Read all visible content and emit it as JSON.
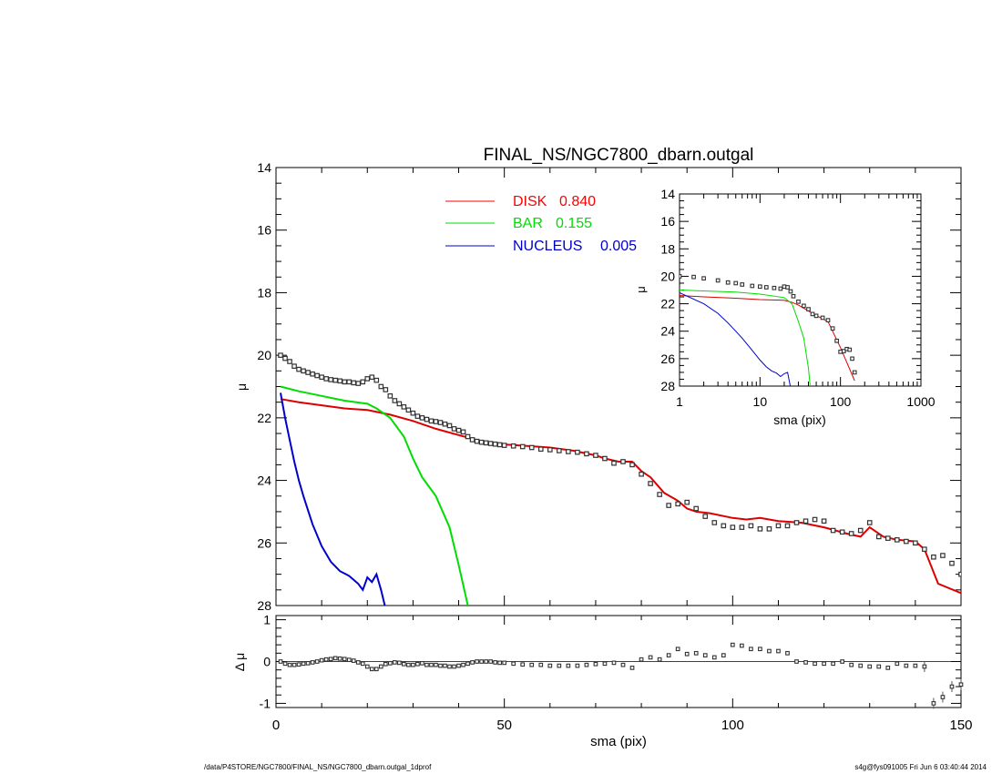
{
  "chart_data": {
    "type": "line",
    "title": "FINAL_NS/NGC7800_dbarn.outgal",
    "main": {
      "xlabel": "sma (pix)",
      "ylabel": "μ",
      "xlim": [
        0,
        150
      ],
      "ylim": [
        14,
        28
      ],
      "y_inverted": true,
      "xticks": [
        "0",
        "50",
        "100",
        "150"
      ],
      "yticks": [
        "14",
        "16",
        "18",
        "20",
        "22",
        "24",
        "26",
        "28"
      ],
      "legend": [
        {
          "name": "DISK",
          "value": "0.840",
          "color": "#ff0000"
        },
        {
          "name": "BAR",
          "value": "0.155",
          "color": "#00dd00"
        },
        {
          "name": "NUCLEUS",
          "value": "0.005",
          "color": "#0000cc"
        }
      ],
      "series": [
        {
          "key": "disk",
          "color": "#dd0000",
          "x": [
            1,
            5,
            10,
            15,
            20,
            25,
            30,
            35,
            40,
            45,
            50,
            55,
            60,
            65,
            70,
            72,
            75,
            78,
            80,
            82,
            85,
            88,
            90,
            92,
            95,
            100,
            103,
            106,
            110,
            115,
            120,
            125,
            128,
            130,
            133,
            136,
            140,
            142,
            145,
            150
          ],
          "y": [
            21.4,
            21.5,
            21.6,
            21.7,
            21.75,
            21.9,
            22.1,
            22.35,
            22.55,
            22.75,
            22.85,
            22.9,
            22.95,
            23.05,
            23.2,
            23.3,
            23.4,
            23.4,
            23.7,
            23.9,
            24.4,
            24.65,
            24.9,
            25.0,
            25.05,
            25.2,
            25.25,
            25.2,
            25.3,
            25.35,
            25.5,
            25.7,
            25.8,
            25.5,
            25.8,
            25.9,
            25.95,
            26.2,
            27.3,
            27.6
          ]
        },
        {
          "key": "bar",
          "color": "#00dd00",
          "x": [
            1,
            5,
            10,
            15,
            20,
            22,
            25,
            28,
            30,
            32,
            35,
            38,
            40,
            42
          ],
          "y": [
            21.0,
            21.15,
            21.3,
            21.45,
            21.55,
            21.7,
            22.0,
            22.6,
            23.3,
            23.9,
            24.5,
            25.5,
            26.7,
            28.0
          ]
        },
        {
          "key": "nucleus",
          "color": "#0000cc",
          "x": [
            1,
            2,
            3,
            4,
            5,
            6,
            8,
            10,
            12,
            14,
            16,
            18,
            19,
            20,
            21,
            22,
            23,
            24
          ],
          "y": [
            21.2,
            22.0,
            22.7,
            23.4,
            24.0,
            24.5,
            25.4,
            26.1,
            26.6,
            26.9,
            27.05,
            27.3,
            27.5,
            27.1,
            27.25,
            27.0,
            27.5,
            28.1
          ]
        },
        {
          "key": "data",
          "type": "points",
          "marker": "square",
          "x": [
            1,
            2,
            3,
            4,
            5,
            6,
            7,
            8,
            9,
            10,
            11,
            12,
            13,
            14,
            15,
            16,
            17,
            18,
            19,
            20,
            21,
            22,
            23,
            24,
            25,
            26,
            27,
            28,
            29,
            30,
            31,
            32,
            33,
            34,
            35,
            36,
            37,
            38,
            39,
            40,
            41,
            42,
            43,
            44,
            45,
            46,
            47,
            48,
            49,
            50,
            52,
            54,
            56,
            58,
            60,
            62,
            64,
            66,
            68,
            70,
            72,
            74,
            76,
            78,
            80,
            82,
            84,
            86,
            88,
            90,
            92,
            94,
            96,
            98,
            100,
            102,
            104,
            106,
            108,
            110,
            112,
            114,
            116,
            118,
            120,
            122,
            124,
            126,
            128,
            130,
            132,
            134,
            136,
            138,
            140,
            142,
            144,
            146,
            148,
            150
          ],
          "y": [
            20.0,
            20.1,
            20.2,
            20.35,
            20.45,
            20.5,
            20.55,
            20.6,
            20.65,
            20.7,
            20.75,
            20.78,
            20.8,
            20.82,
            20.85,
            20.85,
            20.88,
            20.9,
            20.85,
            20.75,
            20.7,
            20.8,
            21.0,
            21.1,
            21.3,
            21.45,
            21.55,
            21.65,
            21.75,
            21.85,
            21.95,
            22.0,
            22.05,
            22.1,
            22.12,
            22.15,
            22.2,
            22.25,
            22.35,
            22.4,
            22.45,
            22.6,
            22.7,
            22.75,
            22.78,
            22.8,
            22.82,
            22.84,
            22.86,
            22.88,
            22.9,
            22.92,
            22.95,
            23.0,
            23.02,
            23.05,
            23.08,
            23.1,
            23.15,
            23.2,
            23.3,
            23.45,
            23.4,
            23.5,
            23.8,
            24.1,
            24.45,
            24.8,
            24.75,
            24.7,
            24.9,
            25.15,
            25.35,
            25.45,
            25.5,
            25.5,
            25.45,
            25.55,
            25.55,
            25.45,
            25.45,
            25.35,
            25.3,
            25.25,
            25.3,
            25.6,
            25.65,
            25.7,
            25.6,
            25.35,
            25.8,
            25.85,
            25.9,
            25.95,
            26.0,
            26.2,
            26.45,
            26.4,
            26.65,
            27.0
          ]
        }
      ]
    },
    "residual": {
      "xlabel": "sma (pix)",
      "ylabel": "Δ μ",
      "xlim": [
        0,
        150
      ],
      "ylim": [
        -1.1,
        1.1
      ],
      "yticks": [
        "1",
        "0",
        "-1"
      ],
      "x": [
        1,
        2,
        3,
        4,
        5,
        6,
        7,
        8,
        9,
        10,
        11,
        12,
        13,
        14,
        15,
        16,
        17,
        18,
        19,
        20,
        21,
        22,
        23,
        24,
        25,
        26,
        27,
        28,
        29,
        30,
        31,
        32,
        33,
        34,
        35,
        36,
        37,
        38,
        39,
        40,
        41,
        42,
        43,
        44,
        45,
        46,
        47,
        48,
        49,
        50,
        52,
        54,
        56,
        58,
        60,
        62,
        64,
        66,
        68,
        70,
        72,
        74,
        76,
        78,
        80,
        82,
        84,
        86,
        88,
        90,
        92,
        94,
        96,
        98,
        100,
        102,
        104,
        106,
        108,
        110,
        112,
        114,
        116,
        118,
        120,
        122,
        124,
        126,
        128,
        130,
        132,
        134,
        136,
        138,
        140,
        142,
        144,
        146,
        148,
        150
      ],
      "y": [
        0.0,
        -0.05,
        -0.08,
        -0.08,
        -0.07,
        -0.05,
        -0.04,
        -0.02,
        0.0,
        0.03,
        0.05,
        0.06,
        0.08,
        0.07,
        0.06,
        0.04,
        0.02,
        -0.02,
        -0.05,
        -0.12,
        -0.18,
        -0.18,
        -0.12,
        -0.06,
        -0.04,
        -0.02,
        -0.03,
        -0.06,
        -0.08,
        -0.08,
        -0.06,
        -0.04,
        -0.08,
        -0.08,
        -0.08,
        -0.1,
        -0.1,
        -0.12,
        -0.12,
        -0.1,
        -0.08,
        -0.05,
        -0.02,
        0.0,
        0.0,
        0.0,
        0.0,
        -0.02,
        -0.03,
        -0.03,
        -0.05,
        -0.07,
        -0.08,
        -0.08,
        -0.1,
        -0.1,
        -0.1,
        -0.1,
        -0.08,
        -0.06,
        -0.05,
        -0.03,
        -0.08,
        -0.15,
        0.05,
        0.1,
        0.05,
        0.15,
        0.3,
        0.18,
        0.2,
        0.15,
        0.1,
        0.15,
        0.4,
        0.38,
        0.3,
        0.3,
        0.25,
        0.25,
        0.2,
        0.0,
        -0.02,
        -0.05,
        -0.05,
        -0.05,
        0.0,
        -0.08,
        -0.1,
        -0.12,
        -0.12,
        -0.15,
        -0.05,
        -0.1,
        -0.1,
        -0.12,
        -1.0,
        -0.85,
        -0.6,
        -0.55
      ]
    },
    "inset": {
      "xlabel": "sma (pix)",
      "ylabel": "μ",
      "x_scale": "log",
      "xlim": [
        1,
        1000
      ],
      "ylim": [
        14,
        28
      ],
      "y_inverted": true,
      "xticks": [
        "1",
        "10",
        "100",
        "1000"
      ],
      "yticks": [
        "14",
        "16",
        "18",
        "20",
        "22",
        "24",
        "26",
        "28"
      ],
      "series": [
        {
          "key": "disk",
          "color": "#dd0000",
          "x": [
            1,
            2,
            5,
            10,
            20,
            25,
            30,
            50,
            70,
            100,
            150
          ],
          "y": [
            21.4,
            21.5,
            21.6,
            21.7,
            21.75,
            21.9,
            22.1,
            22.85,
            23.3,
            25.2,
            27.6
          ]
        },
        {
          "key": "bar",
          "color": "#00dd00",
          "x": [
            1,
            5,
            10,
            20,
            25,
            30,
            35,
            40,
            42
          ],
          "y": [
            21.0,
            21.15,
            21.3,
            21.55,
            22.0,
            23.3,
            24.5,
            26.7,
            28.0
          ]
        },
        {
          "key": "nucleus",
          "color": "#0000cc",
          "x": [
            1,
            2,
            3,
            4,
            5,
            6,
            8,
            10,
            12,
            14,
            16,
            18,
            20,
            22,
            24
          ],
          "y": [
            21.2,
            22.0,
            22.7,
            23.4,
            24.0,
            24.5,
            25.4,
            26.1,
            26.6,
            26.9,
            27.05,
            27.3,
            27.1,
            27.0,
            28.1
          ]
        },
        {
          "key": "data",
          "type": "points",
          "marker": "square",
          "x": [
            1,
            1.5,
            2,
            3,
            4,
            5,
            6,
            8,
            10,
            12,
            15,
            18,
            20,
            22,
            24,
            26,
            30,
            35,
            40,
            45,
            50,
            60,
            70,
            80,
            90,
            100,
            110,
            120,
            130,
            140,
            150
          ],
          "y": [
            20.0,
            20.05,
            20.15,
            20.3,
            20.45,
            20.5,
            20.6,
            20.7,
            20.75,
            20.8,
            20.85,
            20.9,
            20.75,
            20.8,
            21.1,
            21.45,
            21.85,
            22.15,
            22.4,
            22.75,
            22.88,
            23.02,
            23.2,
            23.8,
            24.7,
            25.5,
            25.45,
            25.3,
            25.35,
            26.0,
            27.0
          ]
        }
      ]
    }
  },
  "footer": {
    "left": "/data/P4STORE/NGC7800/FINAL_NS/NGC7800_dbarn.outgal_1dprof",
    "right": "s4g@fys091005  Fri Jun  6 03:40:44 2014"
  }
}
